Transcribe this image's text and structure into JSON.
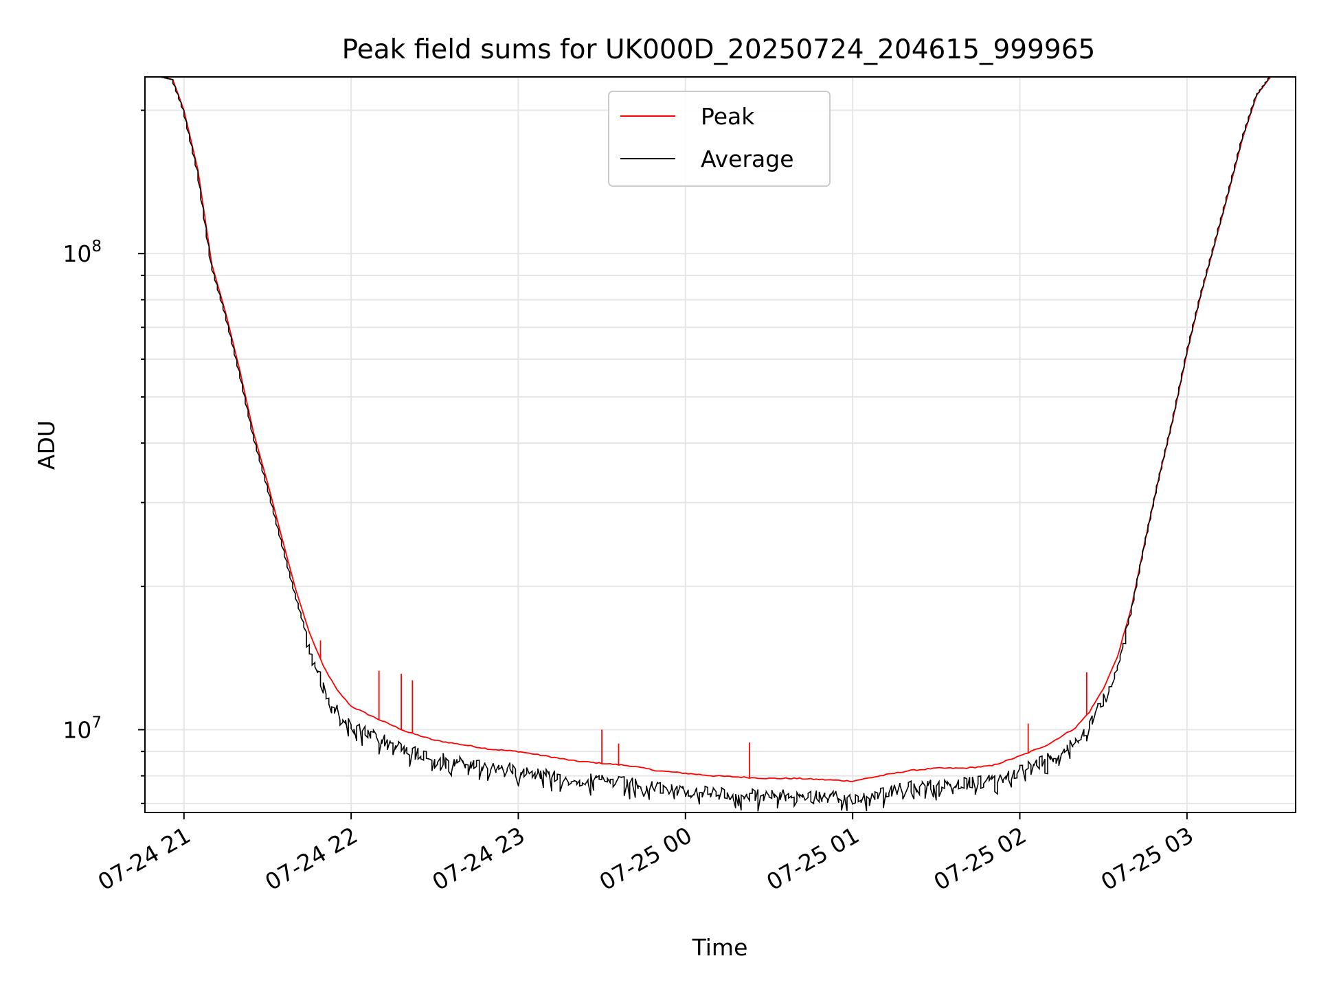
{
  "chart_data": {
    "type": "line",
    "title": "Peak field sums for UK000D_20250724_204615_999965",
    "xlabel": "Time",
    "ylabel": "ADU",
    "yscale": "log",
    "grid": true,
    "legend_position": "top-center",
    "x_tick_labels": [
      "07-24 21",
      "07-24 22",
      "07-24 23",
      "07-25 00",
      "07-25 01",
      "07-25 02",
      "07-25 03"
    ],
    "x_tick_times": [
      "2025-07-24 21:00",
      "2025-07-24 22:00",
      "2025-07-24 23:00",
      "2025-07-25 00:00",
      "2025-07-25 01:00",
      "2025-07-25 02:00",
      "2025-07-25 03:00"
    ],
    "xlim": [
      "2025-07-24 20:46",
      "2025-07-25 03:39"
    ],
    "y_tick_labels": [
      {
        "base": "10",
        "exp": "7",
        "value": 10000000
      },
      {
        "base": "10",
        "exp": "8",
        "value": 100000000
      }
    ],
    "ylim": [
      6700000,
      235000000
    ],
    "series": [
      {
        "name": "Peak",
        "color": "#ff0000",
        "x": [
          "2025-07-24 20:46",
          "2025-07-24 20:52",
          "2025-07-24 20:56",
          "2025-07-24 21:00",
          "2025-07-24 21:05",
          "2025-07-24 21:10",
          "2025-07-24 21:15",
          "2025-07-24 21:20",
          "2025-07-24 21:25",
          "2025-07-24 21:30",
          "2025-07-24 21:35",
          "2025-07-24 21:40",
          "2025-07-24 21:45",
          "2025-07-24 21:50",
          "2025-07-24 21:55",
          "2025-07-24 22:00",
          "2025-07-24 22:10",
          "2025-07-24 22:20",
          "2025-07-24 22:30",
          "2025-07-24 22:40",
          "2025-07-24 22:50",
          "2025-07-24 23:00",
          "2025-07-24 23:10",
          "2025-07-24 23:20",
          "2025-07-24 23:30",
          "2025-07-24 23:40",
          "2025-07-24 23:50",
          "2025-07-25 00:00",
          "2025-07-25 00:10",
          "2025-07-25 00:20",
          "2025-07-25 00:30",
          "2025-07-25 00:40",
          "2025-07-25 00:50",
          "2025-07-25 01:00",
          "2025-07-25 01:10",
          "2025-07-25 01:20",
          "2025-07-25 01:30",
          "2025-07-25 01:40",
          "2025-07-25 01:50",
          "2025-07-25 02:00",
          "2025-07-25 02:10",
          "2025-07-25 02:20",
          "2025-07-25 02:25",
          "2025-07-25 02:30",
          "2025-07-25 02:35",
          "2025-07-25 02:40",
          "2025-07-25 02:45",
          "2025-07-25 02:50",
          "2025-07-25 02:55",
          "2025-07-25 03:00",
          "2025-07-25 03:05",
          "2025-07-25 03:10",
          "2025-07-25 03:15",
          "2025-07-25 03:20",
          "2025-07-25 03:25",
          "2025-07-25 03:30",
          "2025-07-25 03:39"
        ],
        "values": [
          235000000,
          235000000,
          232000000,
          200000000,
          150000000,
          95000000,
          75000000,
          57000000,
          42000000,
          33000000,
          25500000,
          19800000,
          16000000,
          13600000,
          12100000,
          11200000,
          10500000,
          9900000,
          9500000,
          9300000,
          9100000,
          9000000,
          8800000,
          8600000,
          8500000,
          8400000,
          8200000,
          8100000,
          8000000,
          7950000,
          7900000,
          7900000,
          7850000,
          7800000,
          8000000,
          8200000,
          8300000,
          8300000,
          8400000,
          8800000,
          9300000,
          10100000,
          10900000,
          12200000,
          14200000,
          18000000,
          25000000,
          34000000,
          45000000,
          62000000,
          82000000,
          105000000,
          135000000,
          175000000,
          215000000,
          235000000,
          235000000
        ]
      },
      {
        "name": "Average",
        "color": "#000000",
        "x": [
          "2025-07-24 20:46",
          "2025-07-24 20:52",
          "2025-07-24 20:56",
          "2025-07-24 21:00",
          "2025-07-24 21:05",
          "2025-07-24 21:10",
          "2025-07-24 21:15",
          "2025-07-24 21:20",
          "2025-07-24 21:25",
          "2025-07-24 21:30",
          "2025-07-24 21:35",
          "2025-07-24 21:40",
          "2025-07-24 21:45",
          "2025-07-24 21:50",
          "2025-07-24 21:55",
          "2025-07-24 22:00",
          "2025-07-24 22:10",
          "2025-07-24 22:20",
          "2025-07-24 22:30",
          "2025-07-24 22:40",
          "2025-07-24 22:50",
          "2025-07-24 23:00",
          "2025-07-24 23:10",
          "2025-07-24 23:20",
          "2025-07-24 23:30",
          "2025-07-24 23:40",
          "2025-07-24 23:50",
          "2025-07-25 00:00",
          "2025-07-25 00:10",
          "2025-07-25 00:20",
          "2025-07-25 00:30",
          "2025-07-25 00:40",
          "2025-07-25 00:50",
          "2025-07-25 01:00",
          "2025-07-25 01:10",
          "2025-07-25 01:20",
          "2025-07-25 01:30",
          "2025-07-25 01:40",
          "2025-07-25 01:50",
          "2025-07-25 02:00",
          "2025-07-25 02:10",
          "2025-07-25 02:20",
          "2025-07-25 02:25",
          "2025-07-25 02:30",
          "2025-07-25 02:35",
          "2025-07-25 02:40",
          "2025-07-25 02:45",
          "2025-07-25 02:50",
          "2025-07-25 02:55",
          "2025-07-25 03:00",
          "2025-07-25 03:05",
          "2025-07-25 03:10",
          "2025-07-25 03:15",
          "2025-07-25 03:20",
          "2025-07-25 03:25",
          "2025-07-25 03:30",
          "2025-07-25 03:39"
        ],
        "values": [
          235000000,
          235000000,
          232000000,
          200000000,
          149000000,
          94500000,
          74500000,
          56500000,
          41500000,
          32500000,
          25000000,
          19300000,
          15300000,
          12800000,
          11300000,
          10500000,
          9900000,
          9400000,
          9000000,
          8800000,
          8600000,
          8500000,
          8300000,
          8150000,
          8050000,
          7950000,
          7800000,
          7700000,
          7600000,
          7550000,
          7500000,
          7480000,
          7450000,
          7400000,
          7600000,
          7800000,
          7900000,
          7950000,
          8050000,
          8450000,
          8950000,
          9700000,
          10500000,
          11800000,
          13800000,
          17500000,
          24500000,
          33500000,
          44500000,
          61500000,
          81500000,
          104500000,
          134500000,
          174500000,
          214500000,
          235000000,
          235000000
        ]
      }
    ],
    "peak_spikes": [
      {
        "x": "2025-07-24 21:49",
        "value": 15400000
      },
      {
        "x": "2025-07-24 22:10",
        "value": 13300000
      },
      {
        "x": "2025-07-24 22:18",
        "value": 13100000
      },
      {
        "x": "2025-07-24 22:22",
        "value": 12700000
      },
      {
        "x": "2025-07-24 23:30",
        "value": 10000000
      },
      {
        "x": "2025-07-24 23:36",
        "value": 9350000
      },
      {
        "x": "2025-07-25 00:23",
        "value": 9400000
      },
      {
        "x": "2025-07-25 02:03",
        "value": 10300000
      },
      {
        "x": "2025-07-25 02:24",
        "value": 13200000
      }
    ]
  }
}
